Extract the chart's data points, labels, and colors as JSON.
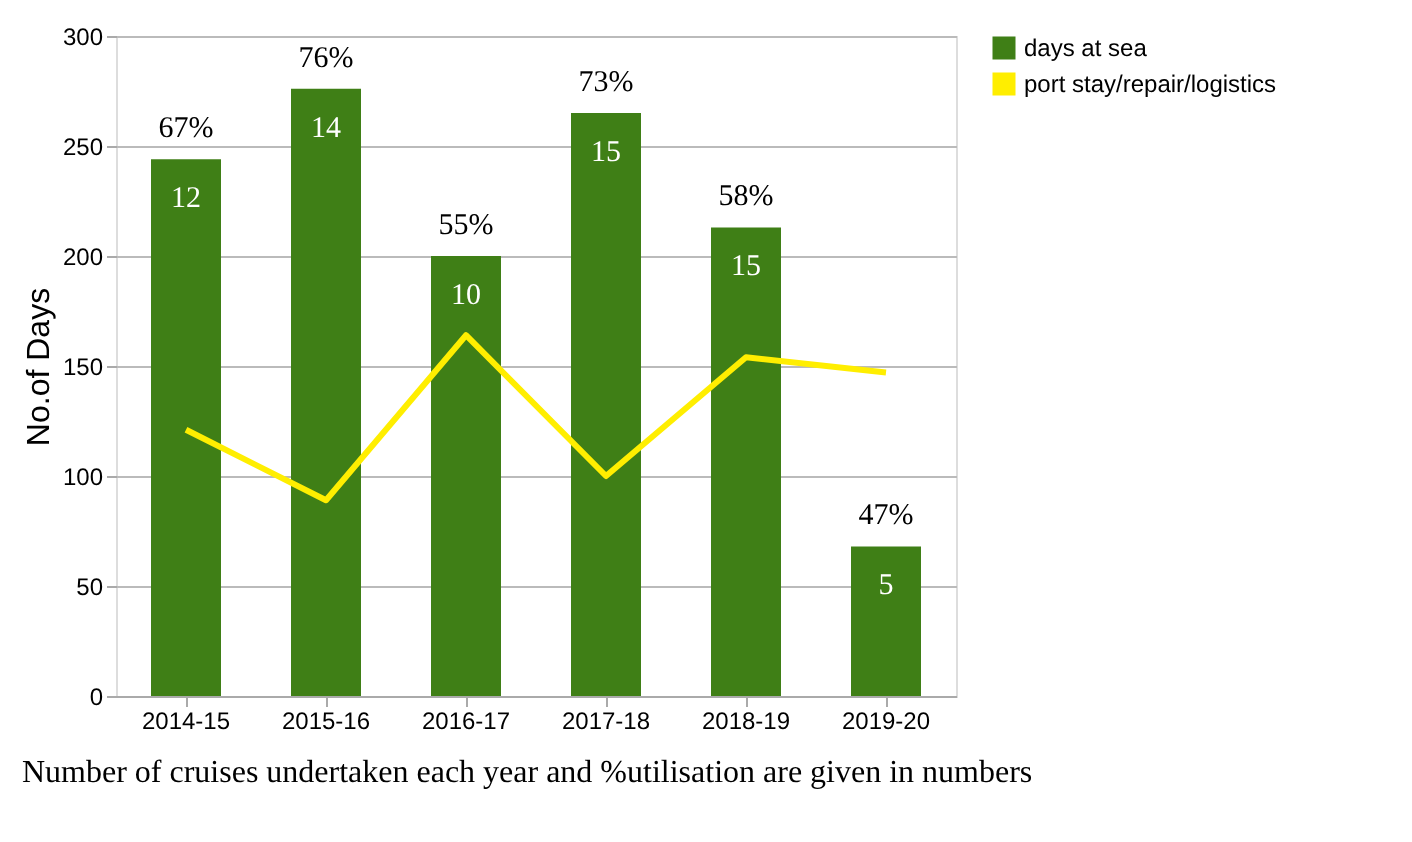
{
  "chart_data": {
    "type": "bar",
    "ylabel": "No.of Days",
    "categories": [
      "2014-15",
      "2015-16",
      "2016-17",
      "2017-18",
      "2018-19",
      "2019-20"
    ],
    "series": [
      {
        "name": "days at sea",
        "color": "#3f7f16",
        "values": [
          244,
          276,
          200,
          265,
          213,
          68
        ]
      },
      {
        "name": "port stay/repair/logistics",
        "type": "line",
        "color": "#ffee00",
        "values": [
          121,
          89,
          164,
          100,
          154,
          147
        ]
      }
    ],
    "ylim": [
      0,
      300
    ],
    "yticks": [
      0,
      50,
      100,
      150,
      200,
      250,
      300
    ],
    "grid": "y",
    "legend": "right",
    "annotations": [
      {
        "text": "67%",
        "x": "2014-15",
        "y": 244
      },
      {
        "text": "76%",
        "x": "2015-16",
        "y": 276
      },
      {
        "text": "55%",
        "x": "2016-17",
        "y": 200
      },
      {
        "text": "73%",
        "x": "2017-18",
        "y": 265
      },
      {
        "text": "58%",
        "x": "2018-19",
        "y": 213
      },
      {
        "text": "47%",
        "x": "2019-20",
        "y": 68
      },
      {
        "text": "12",
        "x": "2014-15",
        "y": 244
      },
      {
        "text": "14",
        "x": "2015-16",
        "y": 276
      },
      {
        "text": "10",
        "x": "2016-17",
        "y": 200
      },
      {
        "text": "15",
        "x": "2017-18",
        "y": 265
      },
      {
        "text": "15",
        "x": "2018-19",
        "y": 213
      },
      {
        "text": "5",
        "x": "2019-20",
        "y": 68
      },
      "Number of cruises undertaken each year and %utilisation are given in numbers"
    ]
  }
}
